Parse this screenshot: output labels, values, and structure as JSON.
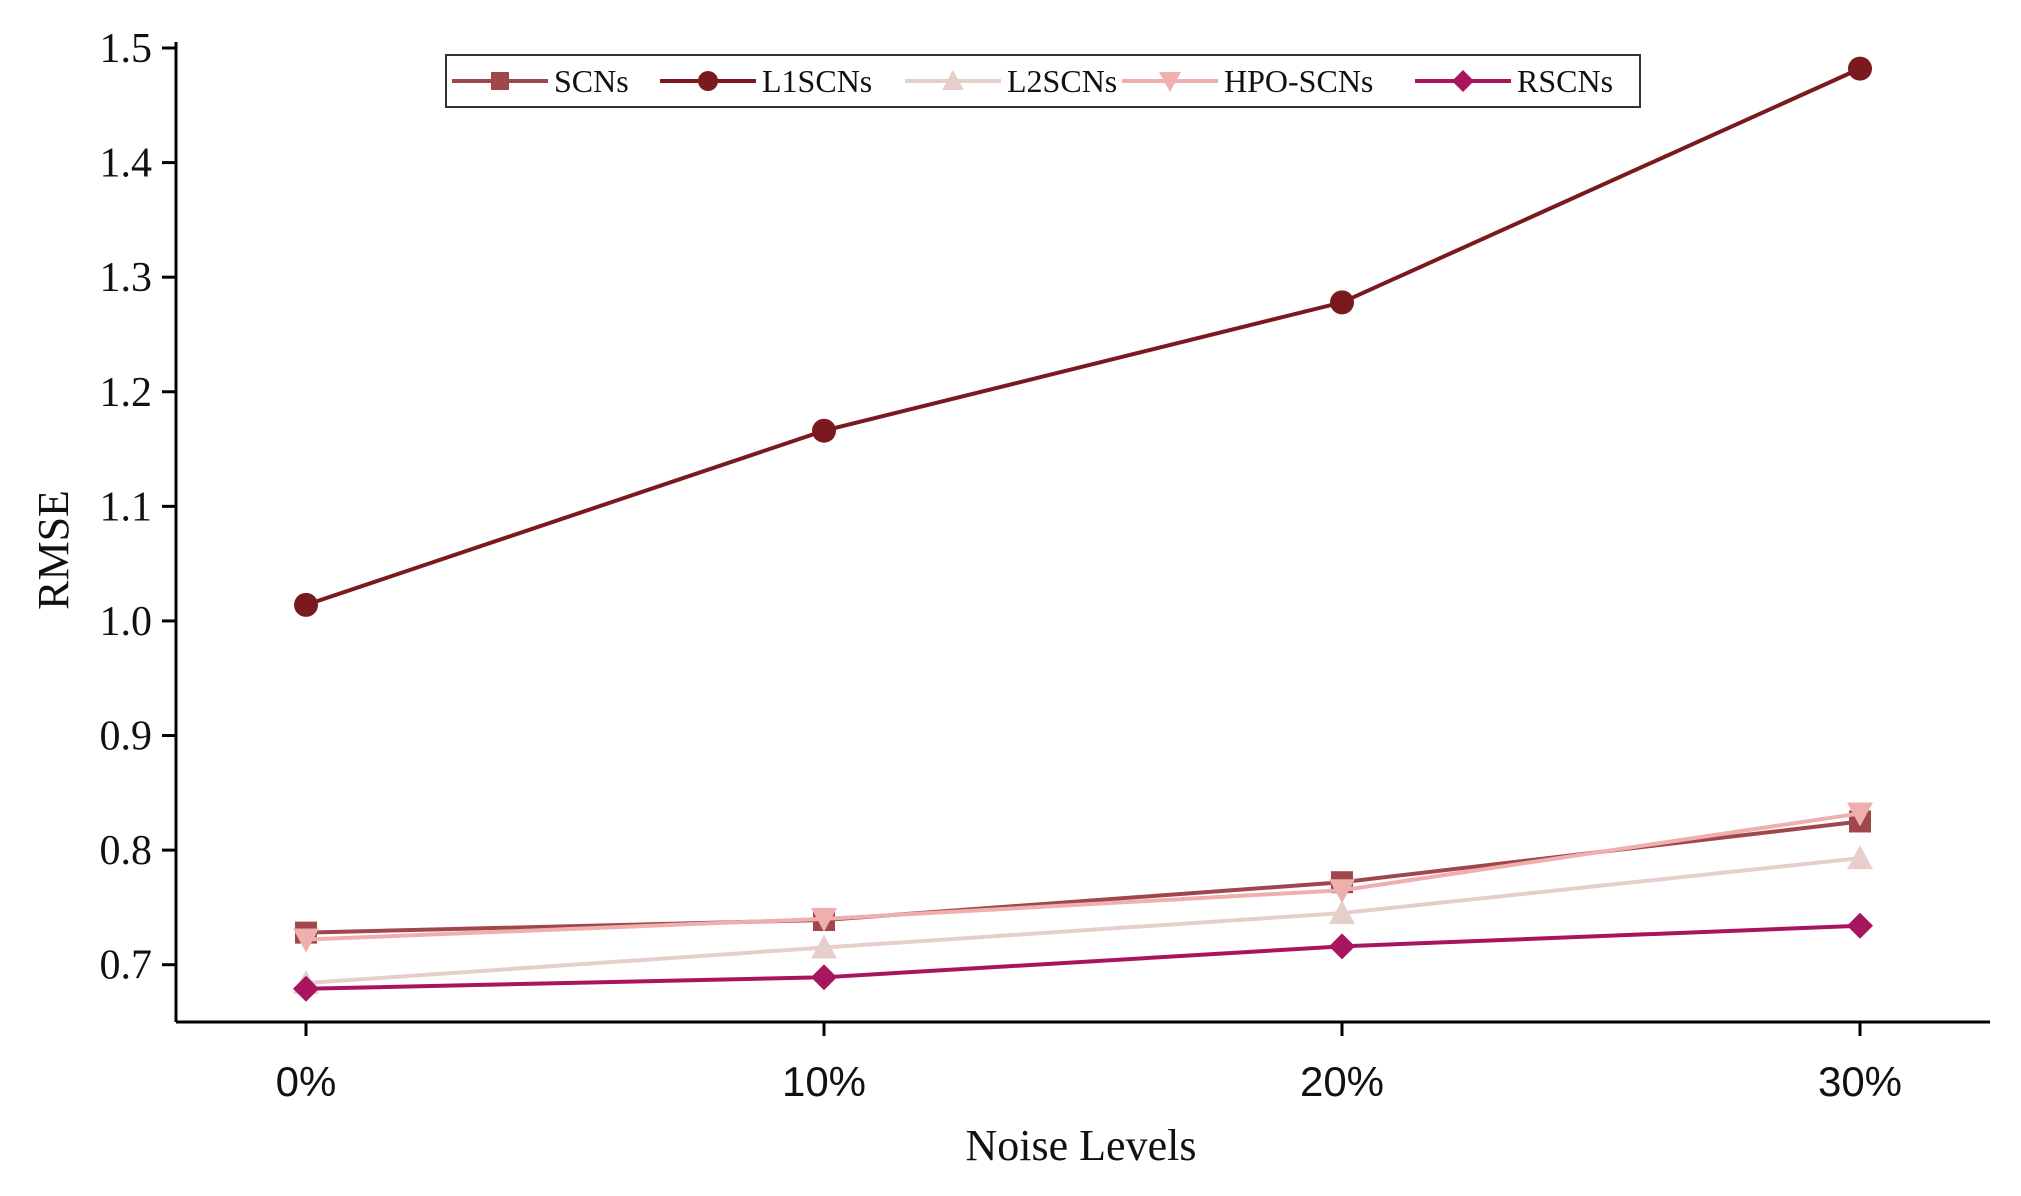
{
  "chart_data": {
    "type": "line",
    "title": "",
    "xlabel": "Noise Levels",
    "ylabel": "RMSE",
    "categories": [
      "0%",
      "10%",
      "20%",
      "30%"
    ],
    "ylim": [
      0.65,
      1.5
    ],
    "yticks": [
      0.7,
      0.8,
      0.9,
      1.0,
      1.1,
      1.2,
      1.3,
      1.4,
      1.5
    ],
    "ytick_labels": [
      "0.7",
      "0.8",
      "0.9",
      "1.0",
      "1.1",
      "1.2",
      "1.3",
      "1.4",
      "1.5"
    ],
    "grid": false,
    "legend_position": "top-center",
    "series": [
      {
        "name": "SCNs",
        "marker": "square",
        "color": "#A0474C",
        "values": [
          0.728,
          0.739,
          0.772,
          0.825
        ]
      },
      {
        "name": "L1SCNs",
        "marker": "circle",
        "color": "#7A1A1E",
        "values": [
          1.014,
          1.166,
          1.278,
          1.482
        ]
      },
      {
        "name": "L2SCNs",
        "marker": "triangle-up",
        "color": "#E6CFCA",
        "values": [
          0.684,
          0.715,
          0.745,
          0.793
        ]
      },
      {
        "name": "HPO-SCNs",
        "marker": "triangle-down",
        "color": "#F0AFAF",
        "values": [
          0.722,
          0.74,
          0.765,
          0.832
        ]
      },
      {
        "name": "RSCNs",
        "marker": "diamond",
        "color": "#A8145E",
        "values": [
          0.679,
          0.689,
          0.716,
          0.734
        ]
      }
    ]
  }
}
